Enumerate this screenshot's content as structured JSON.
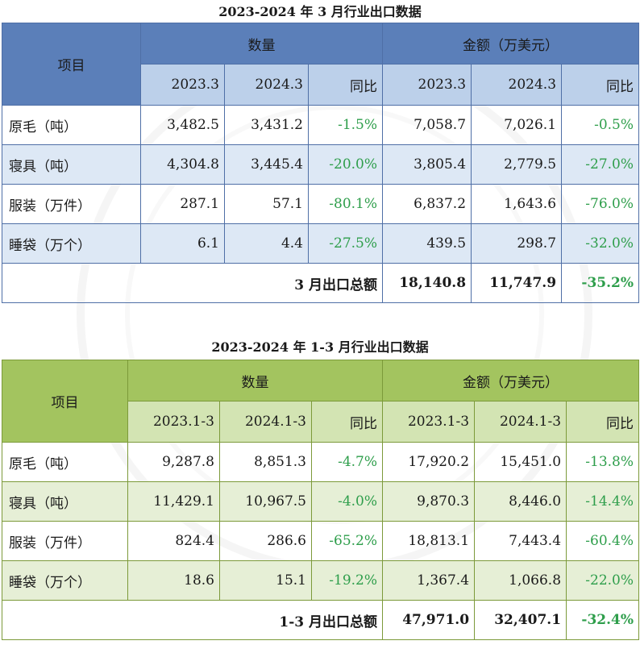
{
  "table1": {
    "title": "2023-2024 年 3 月行业出口数据",
    "item_header": "项目",
    "qty_header": "数量",
    "amount_header": "金额（万美元）",
    "sub_headers": [
      "2023.3",
      "2024.3",
      "同比",
      "2023.3",
      "2024.3",
      "同比"
    ],
    "rows": [
      {
        "label": "原毛（吨）",
        "cells": [
          "3,482.5",
          "3,431.2",
          "-1.5%",
          "7,058.7",
          "7,026.1",
          "-0.5%"
        ]
      },
      {
        "label": "寝具（吨）",
        "cells": [
          "4,304.8",
          "3,445.4",
          "-20.0%",
          "3,805.4",
          "2,779.5",
          "-27.0%"
        ]
      },
      {
        "label": "服装（万件）",
        "cells": [
          "287.1",
          "57.1",
          "-80.1%",
          "6,837.2",
          "1,643.6",
          "-76.0%"
        ]
      },
      {
        "label": "睡袋（万个）",
        "cells": [
          "6.1",
          "4.4",
          "-27.5%",
          "439.5",
          "298.7",
          "-32.0%"
        ]
      }
    ],
    "total": {
      "label": "3 月出口总额",
      "cells": [
        "18,140.8",
        "11,747.9",
        "-35.2%"
      ]
    },
    "colors": {
      "header": "#5b7fb9",
      "subheader": "#bcd0ea",
      "shade": "#dde8f5"
    }
  },
  "table2": {
    "title": "2023-2024 年 1-3 月行业出口数据",
    "item_header": "项目",
    "qty_header": "数量",
    "amount_header": "金额（万美元）",
    "sub_headers": [
      "2023.1-3",
      "2024.1-3",
      "同比",
      "2023.1-3",
      "2024.1-3",
      "同比"
    ],
    "rows": [
      {
        "label": "原毛（吨）",
        "cells": [
          "9,287.8",
          "8,851.3",
          "-4.7%",
          "17,920.2",
          "15,451.0",
          "-13.8%"
        ]
      },
      {
        "label": "寝具（吨）",
        "cells": [
          "11,429.1",
          "10,967.5",
          "-4.0%",
          "9,870.3",
          "8,446.0",
          "-14.4%"
        ]
      },
      {
        "label": "服装（万件）",
        "cells": [
          "824.4",
          "286.6",
          "-65.2%",
          "18,813.1",
          "7,443.4",
          "-60.4%"
        ]
      },
      {
        "label": "睡袋（万个）",
        "cells": [
          "18.6",
          "15.1",
          "-19.2%",
          "1,367.4",
          "1,066.8",
          "-22.0%"
        ]
      }
    ],
    "total": {
      "label": "1-3 月出口总额",
      "cells": [
        "47,971.0",
        "32,407.1",
        "-32.4%"
      ]
    },
    "colors": {
      "header": "#a3c45f",
      "subheader": "#d3e4b3",
      "shade": "#e6efd6"
    }
  },
  "colors": {
    "yoy_text": "#2e9e4b"
  }
}
